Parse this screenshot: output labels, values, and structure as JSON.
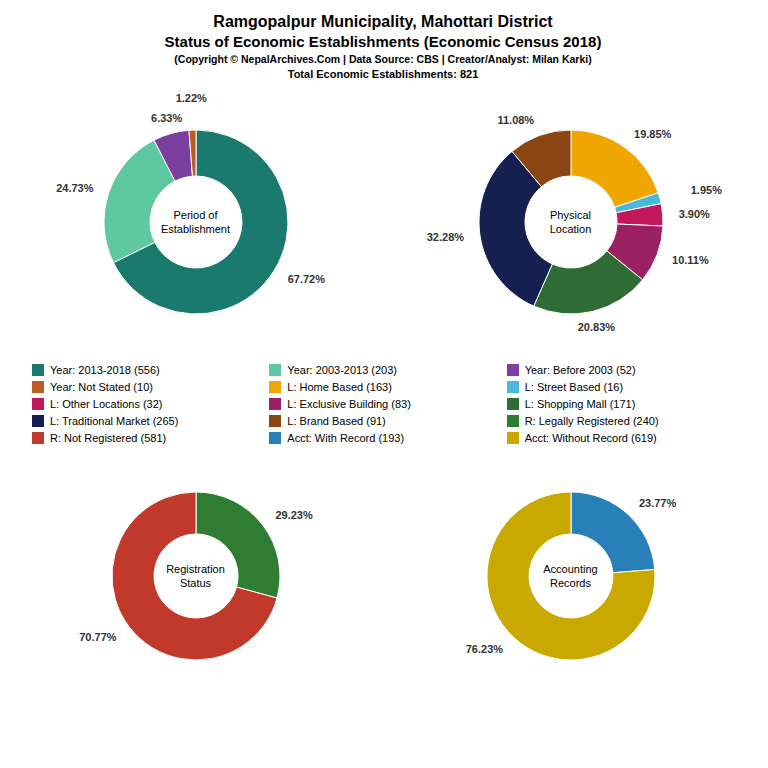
{
  "title": [
    "Ramgopalpur Municipality, Mahottari District",
    "Status of Economic Establishments (Economic Census 2018)"
  ],
  "subtitle": [
    "(Copyright © NepalArchives.Com | Data Source: CBS | Creator/Analyst: Milan Karki)",
    "Total Economic Establishments: 821"
  ],
  "legend": "center",
  "chart_data": [
    {
      "type": "pie",
      "title": "Period of\nEstablishment",
      "categories": [
        "Year: 2013-2018 (556)",
        "Year: 2003-2013 (203)",
        "Year: Before 2003 (52)",
        "Year: Not Stated (10)"
      ],
      "values": [
        67.72,
        24.73,
        6.33,
        1.22
      ],
      "value_labels": [
        "67.72%",
        "24.73%",
        "6.33%",
        "1.22%"
      ],
      "colors": [
        "#1a7a6e",
        "#5ec8a0",
        "#7b3fa0",
        "#b85c2a"
      ],
      "data_labels": true
    },
    {
      "type": "pie",
      "title": "Physical\nLocation",
      "categories": [
        "L: Home Based (163)",
        "L: Street Based (16)",
        "L: Other Locations (32)",
        "L: Exclusive Building (83)",
        "L: Shopping Mall (171)",
        "L: Traditional Market (265)",
        "L: Brand Based (91)"
      ],
      "values": [
        19.85,
        1.95,
        3.9,
        10.11,
        20.83,
        32.28,
        11.08
      ],
      "value_labels": [
        "19.85%",
        "1.95%",
        "3.90%",
        "10.11%",
        "20.83%",
        "32.28%",
        "11.08%"
      ],
      "colors": [
        "#f0a500",
        "#4ab8d8",
        "#c2185b",
        "#9c2064",
        "#2e6b35",
        "#152050",
        "#8b4513"
      ],
      "data_labels": true
    },
    {
      "type": "pie",
      "title": "Registration\nStatus",
      "categories": [
        "R: Legally Registered (240)",
        "R: Not Registered (581)"
      ],
      "values": [
        29.23,
        70.77
      ],
      "value_labels": [
        "29.23%",
        "70.77%"
      ],
      "colors": [
        "#2e7d32",
        "#c0392b"
      ],
      "data_labels": true
    },
    {
      "type": "pie",
      "title": "Accounting\nRecords",
      "categories": [
        "Acct: With Record (193)",
        "Acct: Without Record (619)"
      ],
      "values": [
        23.77,
        76.23
      ],
      "value_labels": [
        "23.77%",
        "76.23%"
      ],
      "colors": [
        "#2980b9",
        "#c9a800"
      ],
      "data_labels": true
    }
  ]
}
